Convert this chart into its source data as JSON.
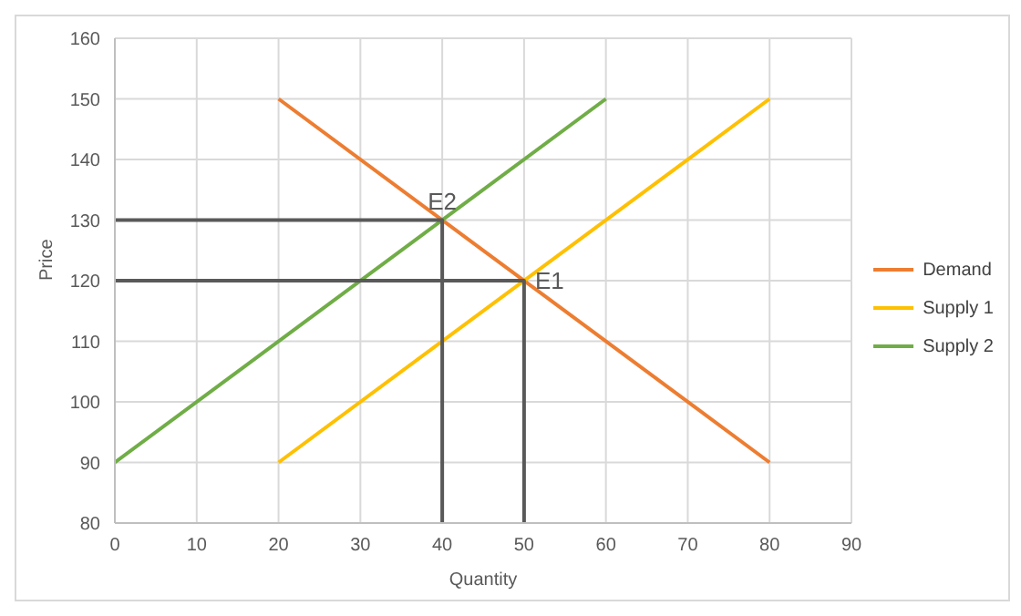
{
  "chart_data": {
    "type": "line",
    "xlabel": "Quantity",
    "ylabel": "Price",
    "xlim": [
      0,
      90
    ],
    "xticks": [
      0,
      10,
      20,
      30,
      40,
      50,
      60,
      70,
      80,
      90
    ],
    "ylim": [
      80,
      160
    ],
    "yticks": [
      80,
      90,
      100,
      110,
      120,
      130,
      140,
      150,
      160
    ],
    "grid": true,
    "legend": "right",
    "marker": "none",
    "line_style": "solid",
    "series": [
      {
        "name": "Demand",
        "color": "#ed7d31",
        "x": [
          20,
          80
        ],
        "values": [
          150,
          90
        ]
      },
      {
        "name": "Supply 1",
        "color": "#ffc000",
        "x": [
          20,
          80
        ],
        "values": [
          90,
          150
        ]
      },
      {
        "name": "Supply 2",
        "color": "#70ad47",
        "x": [
          0,
          60
        ],
        "values": [
          90,
          150
        ]
      },
      {
        "color": "#595959",
        "x": [
          0,
          40,
          40
        ],
        "values": [
          130,
          130,
          80
        ]
      },
      {
        "color": "#595959",
        "x": [
          0,
          50,
          50
        ],
        "values": [
          120,
          120,
          80
        ]
      }
    ],
    "annotations": [
      {
        "text": "E1",
        "x": 50,
        "y": 120
      },
      {
        "text": "E2",
        "x": 40,
        "y": 130
      }
    ]
  }
}
